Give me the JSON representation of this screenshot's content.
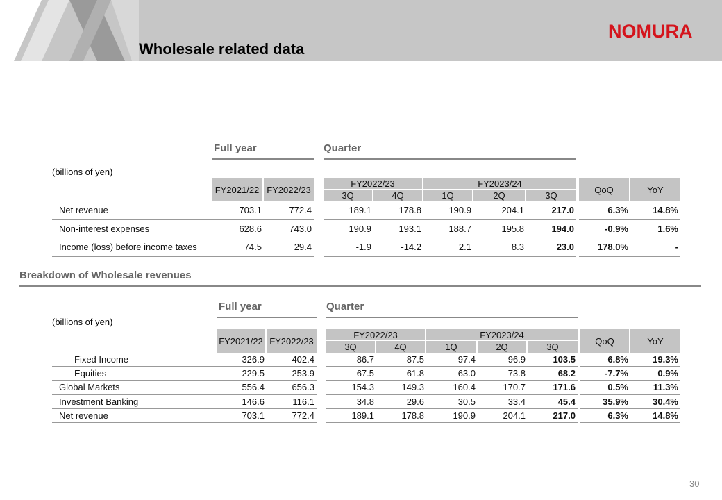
{
  "header": {
    "title": "Wholesale related data",
    "logo": "NOMURA"
  },
  "table1": {
    "full_year_label": "Full year",
    "quarter_label": "Quarter",
    "unit": "(billions of yen)",
    "fy_headers": [
      "FY2021/22",
      "FY2022/23"
    ],
    "q_groups": [
      "FY2022/23",
      "FY2023/24"
    ],
    "quarters": [
      "3Q",
      "4Q",
      "1Q",
      "2Q",
      "3Q"
    ],
    "qoq": "QoQ",
    "yoy": "YoY",
    "rows": [
      [
        "Net revenue",
        "703.1",
        "772.4",
        "189.1",
        "178.8",
        "190.9",
        "204.1",
        "217.0",
        "6.3%",
        "14.8%"
      ],
      [
        "Non-interest expenses",
        "628.6",
        "743.0",
        "190.9",
        "193.1",
        "188.7",
        "195.8",
        "194.0",
        "-0.9%",
        "1.6%"
      ],
      [
        "Income (loss) before income taxes",
        "74.5",
        "29.4",
        "-1.9",
        "-14.2",
        "2.1",
        "8.3",
        "23.0",
        "178.0%",
        "-"
      ]
    ]
  },
  "section2": {
    "title": "Breakdown of Wholesale revenues"
  },
  "table2": {
    "full_year_label": "Full year",
    "quarter_label": "Quarter",
    "unit": "(billions of yen)",
    "fy_headers": [
      "FY2021/22",
      "FY2022/23"
    ],
    "q_groups": [
      "FY2022/23",
      "FY2023/24"
    ],
    "quarters": [
      "3Q",
      "4Q",
      "1Q",
      "2Q",
      "3Q"
    ],
    "qoq": "QoQ",
    "yoy": "YoY",
    "rows": [
      [
        "Fixed Income",
        "326.9",
        "402.4",
        "86.7",
        "87.5",
        "97.4",
        "96.9",
        "103.5",
        "6.8%",
        "19.3%"
      ],
      [
        "Equities",
        "229.5",
        "253.9",
        "67.5",
        "61.8",
        "63.0",
        "73.8",
        "68.2",
        "-7.7%",
        "0.9%"
      ],
      [
        "Global Markets",
        "556.4",
        "656.3",
        "154.3",
        "149.3",
        "160.4",
        "170.7",
        "171.6",
        "0.5%",
        "11.3%"
      ],
      [
        "Investment Banking",
        "146.6",
        "116.1",
        "34.8",
        "29.6",
        "30.5",
        "33.4",
        "45.4",
        "35.9%",
        "30.4%"
      ],
      [
        "Net revenue",
        "703.1",
        "772.4",
        "189.1",
        "178.8",
        "190.9",
        "204.1",
        "217.0",
        "6.3%",
        "14.8%"
      ]
    ]
  },
  "page_number": "30"
}
